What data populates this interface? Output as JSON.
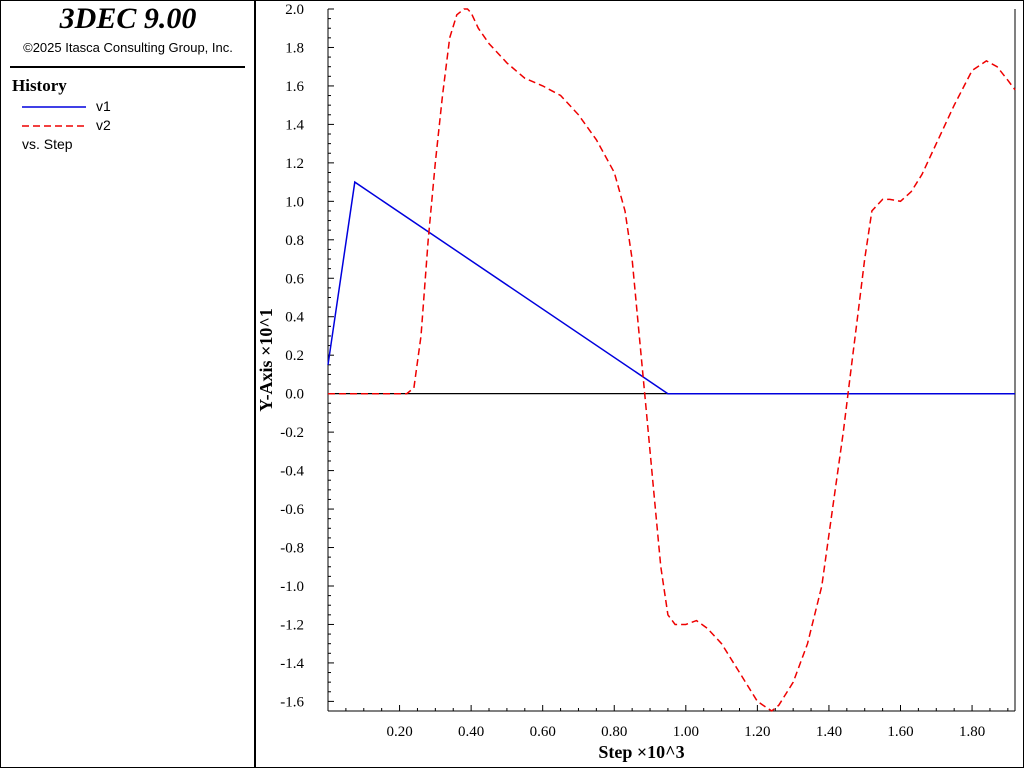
{
  "header": {
    "app_title": "3DEC 9.00",
    "copyright": "©2025 Itasca Consulting Group, Inc."
  },
  "legend": {
    "title": "History",
    "items": [
      {
        "label": "v1",
        "color": "#0000dd",
        "style": "solid"
      },
      {
        "label": "v2",
        "color": "#ee0000",
        "style": "dashed"
      }
    ],
    "vs_label": "vs. Step"
  },
  "chart_data": {
    "type": "line",
    "xlabel": "Step ×10^3",
    "ylabel": "Y-Axis ×10^1",
    "xlim": [
      0,
      1.92
    ],
    "ylim": [
      -1.65,
      2.0
    ],
    "x_ticks": [
      "0.20",
      "0.40",
      "0.60",
      "0.80",
      "1.00",
      "1.20",
      "1.40",
      "1.60",
      "1.80"
    ],
    "x_tick_values": [
      0.2,
      0.4,
      0.6,
      0.8,
      1.0,
      1.2,
      1.4,
      1.6,
      1.8
    ],
    "y_ticks": [
      "2.0",
      "1.8",
      "1.6",
      "1.4",
      "1.2",
      "1.0",
      "0.8",
      "0.6",
      "0.4",
      "0.2",
      "0.0",
      "-0.2",
      "-0.4",
      "-0.6",
      "-0.8",
      "-1.0",
      "-1.2",
      "-1.4",
      "-1.6"
    ],
    "y_tick_values": [
      2.0,
      1.8,
      1.6,
      1.4,
      1.2,
      1.0,
      0.8,
      0.6,
      0.4,
      0.2,
      0.0,
      -0.2,
      -0.4,
      -0.6,
      -0.8,
      -1.0,
      -1.2,
      -1.4,
      -1.6
    ],
    "zero_line": true,
    "series": [
      {
        "name": "v1",
        "color": "#0000dd",
        "dash": "",
        "x": [
          0.0,
          0.075,
          0.95,
          1.92
        ],
        "y": [
          0.15,
          1.1,
          0.0,
          0.0
        ]
      },
      {
        "name": "v2",
        "color": "#ee0000",
        "dash": "7,4",
        "x": [
          0.0,
          0.22,
          0.24,
          0.26,
          0.28,
          0.3,
          0.32,
          0.34,
          0.36,
          0.38,
          0.39,
          0.4,
          0.42,
          0.45,
          0.5,
          0.55,
          0.6,
          0.65,
          0.7,
          0.75,
          0.8,
          0.83,
          0.85,
          0.87,
          0.89,
          0.91,
          0.93,
          0.95,
          0.97,
          1.0,
          1.03,
          1.06,
          1.1,
          1.15,
          1.2,
          1.24,
          1.26,
          1.3,
          1.34,
          1.38,
          1.41,
          1.44,
          1.46,
          1.48,
          1.5,
          1.52,
          1.55,
          1.57,
          1.6,
          1.63,
          1.66,
          1.7,
          1.75,
          1.8,
          1.84,
          1.87,
          1.9,
          1.92
        ],
        "y": [
          0.0,
          0.0,
          0.03,
          0.3,
          0.8,
          1.2,
          1.55,
          1.85,
          1.97,
          2.0,
          2.0,
          1.98,
          1.9,
          1.82,
          1.72,
          1.64,
          1.6,
          1.55,
          1.45,
          1.32,
          1.15,
          0.95,
          0.7,
          0.3,
          -0.1,
          -0.5,
          -0.9,
          -1.15,
          -1.2,
          -1.2,
          -1.18,
          -1.22,
          -1.3,
          -1.45,
          -1.6,
          -1.65,
          -1.62,
          -1.5,
          -1.3,
          -1.0,
          -0.6,
          -0.2,
          0.1,
          0.4,
          0.7,
          0.95,
          1.01,
          1.01,
          1.0,
          1.05,
          1.14,
          1.3,
          1.5,
          1.68,
          1.73,
          1.7,
          1.63,
          1.58
        ]
      }
    ]
  }
}
